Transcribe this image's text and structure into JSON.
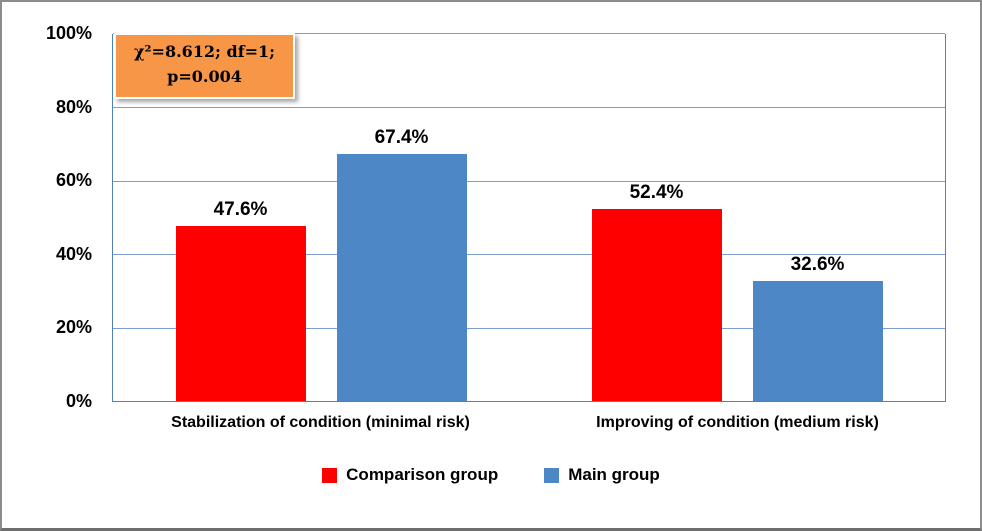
{
  "chart_data": {
    "type": "bar",
    "categories": [
      "Stabilization  of condition  (minimal risk)",
      "Improving of condition  (medium risk)"
    ],
    "series": [
      {
        "name": "Comparison group",
        "color": "#FF0000",
        "values": [
          47.6,
          52.4
        ],
        "labels": [
          "47.6%",
          "52.4%"
        ]
      },
      {
        "name": "Main group",
        "color": "#4E87C6",
        "values": [
          67.4,
          32.6
        ],
        "labels": [
          "67.4%",
          "32.6%"
        ]
      }
    ],
    "yticks": [
      "100%",
      "80%",
      "60%",
      "40%",
      "20%",
      "0%"
    ],
    "ylim": [
      0,
      100
    ],
    "grid": true,
    "legend_position": "bottom",
    "axis_color": "#4F81BD",
    "gridline_color": "#7BA0CD",
    "annotation": {
      "line1": "χ²=8.612; df=1;",
      "line2": "p=0.004",
      "bg_color": "#F79646"
    }
  }
}
